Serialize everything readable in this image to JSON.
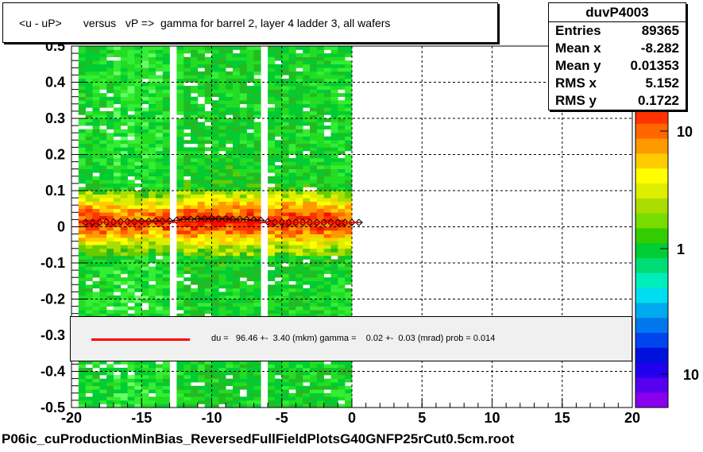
{
  "title": "<u - uP>       versus   vP =>  gamma for barrel 2, layer 4 ladder 3, all wafers",
  "stats": {
    "name": "duvP4003",
    "rows": [
      {
        "label": "Entries",
        "value": "89365"
      },
      {
        "label": "Mean x",
        "value": "-8.282"
      },
      {
        "label": "Mean y",
        "value": "0.01353"
      },
      {
        "label": "RMS x",
        "value": "5.152"
      },
      {
        "label": "RMS y",
        "value": "0.1722"
      }
    ]
  },
  "fit_text": "du =   96.46 +-  3.40 (mkm) gamma =    0.02 +-  0.03 (mrad) prob = 0.014",
  "footer": "P06ic_cuProductionMinBias_ReversedFullFieldPlotsG40GNFP25rCut0.5cm.root",
  "colors": {
    "fit_line": "#ff0000",
    "profile_marker": "#000000",
    "fit_box_bg": "#f0f0f0"
  },
  "chart_data": {
    "type": "heatmap",
    "xlim": [
      -20,
      20
    ],
    "ylim": [
      -0.5,
      0.5
    ],
    "x_ticks": [
      "-20",
      "-15",
      "-10",
      "-5",
      "0",
      "5",
      "10",
      "15",
      "20"
    ],
    "y_ticks": [
      "-0.5",
      "-0.4",
      "-0.3",
      "-0.2",
      "-0.1",
      "0",
      "0.1",
      "0.2",
      "0.3",
      "0.4",
      "0.5"
    ],
    "grid": true,
    "colorbar": {
      "scale": "log",
      "tick_labels": [
        "10",
        "1",
        "10"
      ]
    },
    "occupied_x_range": [
      -19.5,
      0
    ],
    "core_y_range": [
      -0.08,
      0.1
    ],
    "dead_columns_x": [
      -12.9,
      -6.2
    ],
    "profile": {
      "x": [
        -19.0,
        -18.5,
        -18.0,
        -17.5,
        -17.0,
        -16.5,
        -16.0,
        -15.5,
        -15.0,
        -14.5,
        -14.0,
        -13.5,
        -13.0,
        -12.5,
        -12.0,
        -11.5,
        -11.0,
        -10.5,
        -10.0,
        -9.5,
        -9.0,
        -8.5,
        -8.0,
        -7.5,
        -7.0,
        -6.5,
        -6.0,
        -5.5,
        -5.0,
        -4.5,
        -4.0,
        -3.5,
        -3.0,
        -2.5,
        -2.0,
        -1.5,
        -1.0,
        -0.5,
        0.0,
        0.5
      ],
      "y": [
        0.012,
        0.012,
        0.012,
        0.013,
        0.013,
        0.014,
        0.014,
        0.014,
        0.015,
        0.015,
        0.016,
        0.015,
        0.016,
        0.018,
        0.02,
        0.021,
        0.022,
        0.022,
        0.023,
        0.022,
        0.022,
        0.021,
        0.021,
        0.02,
        0.019,
        0.018,
        0.014,
        0.012,
        0.012,
        0.012,
        0.012,
        0.012,
        0.012,
        0.012,
        0.012,
        0.012,
        0.012,
        0.012,
        0.012,
        0.012
      ]
    },
    "fit": {
      "x": [
        -19.5,
        0.5
      ],
      "y": [
        0.013,
        0.012
      ]
    }
  }
}
